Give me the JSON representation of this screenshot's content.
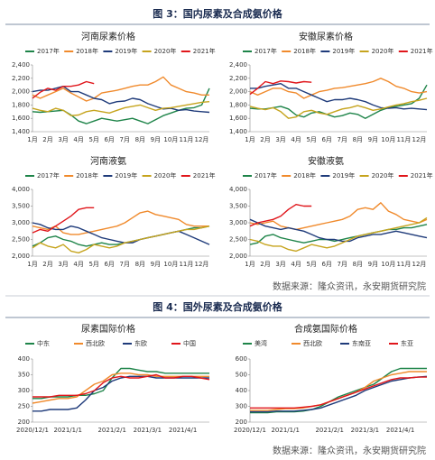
{
  "figures": [
    {
      "title": "图 3：国内尿素及合成氨价格",
      "source": "数据来源：隆众资讯，永安期货研究院"
    },
    {
      "title": "图 4：国外尿素及合成氨价格",
      "source": "数据来源：隆众资讯，永安期货研究院"
    }
  ],
  "chart_data": [
    {
      "type": "line",
      "title": "河南尿素价格",
      "categories": [
        "1月",
        null,
        "2月",
        null,
        "3月",
        null,
        "4月",
        null,
        "5月",
        null,
        "6月",
        null,
        "7月",
        null,
        "8月",
        null,
        "9月",
        null,
        "10月",
        null,
        "11月",
        null,
        "12月",
        null
      ],
      "ylim": [
        1400,
        2400
      ],
      "yticks": [
        {
          "value": 1400,
          "label": "1,400"
        },
        {
          "value": 1600,
          "label": "1,600"
        },
        {
          "value": 1800,
          "label": "1,800"
        },
        {
          "value": 2000,
          "label": "2,000"
        },
        {
          "value": 2200,
          "label": "2,200"
        },
        {
          "value": 2400,
          "label": "2,400"
        }
      ],
      "series": [
        {
          "name": "2017年",
          "color": "#1e8449",
          "values": [
            1700,
            1690,
            1700,
            1710,
            1720,
            1650,
            1560,
            1520,
            1560,
            1600,
            1580,
            1560,
            1580,
            1600,
            1560,
            1520,
            1580,
            1640,
            1680,
            1720,
            1750,
            1760,
            1800,
            2050
          ]
        },
        {
          "name": "2018年",
          "color": "#f08a2c",
          "values": [
            1950,
            1900,
            1950,
            2000,
            2050,
            1980,
            1920,
            1860,
            1900,
            1980,
            2000,
            2020,
            2050,
            2080,
            2100,
            2100,
            2150,
            2220,
            2100,
            2050,
            2000,
            1980,
            1950,
            1950
          ]
        },
        {
          "name": "2019年",
          "color": "#1f3b7a",
          "values": [
            2000,
            2020,
            2020,
            2050,
            2080,
            2000,
            2000,
            1950,
            1900,
            1880,
            1820,
            1850,
            1860,
            1900,
            1880,
            1820,
            1780,
            1740,
            1750,
            1720,
            1730,
            1710,
            1700,
            1690
          ]
        },
        {
          "name": "2020年",
          "color": "#c6a41e",
          "values": [
            1750,
            1720,
            1700,
            1750,
            1720,
            1640,
            1650,
            1700,
            1720,
            1700,
            1680,
            1720,
            1760,
            1780,
            1800,
            1760,
            1720,
            1750,
            1760,
            1780,
            1800,
            1820,
            1840,
            1850
          ]
        },
        {
          "name": "2021年",
          "color": "#e0161b",
          "values": [
            1900,
            1990,
            2050,
            2020,
            2080,
            2080,
            2100,
            2150,
            2120,
            null,
            null,
            null,
            null,
            null,
            null,
            null,
            null,
            null,
            null,
            null,
            null,
            null,
            null,
            null
          ]
        }
      ]
    },
    {
      "type": "line",
      "title": "安徽尿素价格",
      "categories": [
        "1月",
        null,
        "2月",
        null,
        "3月",
        null,
        "4月",
        null,
        "5月",
        null,
        "6月",
        null,
        "7月",
        null,
        "8月",
        null,
        "9月",
        null,
        "10月",
        null,
        "11月",
        null,
        "12月",
        null
      ],
      "ylim": [
        1400,
        2400
      ],
      "yticks": [
        {
          "value": 1400,
          "label": "1,400"
        },
        {
          "value": 1600,
          "label": "1,600"
        },
        {
          "value": 1800,
          "label": "1,800"
        },
        {
          "value": 2000,
          "label": "2,000"
        },
        {
          "value": 2200,
          "label": "2,200"
        },
        {
          "value": 2400,
          "label": "2,400"
        }
      ],
      "series": [
        {
          "name": "2017年",
          "color": "#1e8449",
          "values": [
            1750,
            1740,
            1740,
            1760,
            1780,
            1740,
            1650,
            1620,
            1680,
            1700,
            1660,
            1620,
            1640,
            1680,
            1660,
            1600,
            1660,
            1720,
            1760,
            1780,
            1800,
            1820,
            1900,
            2100
          ]
        },
        {
          "name": "2018年",
          "color": "#f08a2c",
          "values": [
            2000,
            1950,
            2000,
            2050,
            2050,
            2000,
            1980,
            1900,
            1950,
            2000,
            2020,
            2050,
            2060,
            2080,
            2100,
            2120,
            2150,
            2200,
            2150,
            2080,
            2050,
            2000,
            1980,
            2000
          ]
        },
        {
          "name": "2019年",
          "color": "#1f3b7a",
          "values": [
            2050,
            2050,
            2080,
            2100,
            2120,
            2050,
            2050,
            2000,
            1950,
            1900,
            1850,
            1880,
            1880,
            1900,
            1880,
            1850,
            1800,
            1760,
            1750,
            1760,
            1740,
            1750,
            1740,
            1730
          ]
        },
        {
          "name": "2020年",
          "color": "#c6a41e",
          "values": [
            1780,
            1750,
            1730,
            1760,
            1700,
            1600,
            1620,
            1700,
            1720,
            1680,
            1660,
            1700,
            1740,
            1760,
            1790,
            1760,
            1720,
            1740,
            1770,
            1800,
            1820,
            1850,
            1870,
            1900
          ]
        },
        {
          "name": "2021年",
          "color": "#e0161b",
          "values": [
            1960,
            2050,
            2150,
            2120,
            2160,
            2150,
            2130,
            2150,
            2140,
            null,
            null,
            null,
            null,
            null,
            null,
            null,
            null,
            null,
            null,
            null,
            null,
            null,
            null,
            null
          ]
        }
      ]
    },
    {
      "type": "line",
      "title": "河南液氨",
      "categories": [
        "1月",
        null,
        "2月",
        null,
        "3月",
        null,
        "4月",
        null,
        "5月",
        null,
        "6月",
        null,
        "7月",
        null,
        "8月",
        null,
        "9月",
        null,
        "10月",
        null,
        "11月",
        null,
        "12月",
        null
      ],
      "ylim": [
        2000,
        4000
      ],
      "yticks": [
        {
          "value": 2000,
          "label": "2,000"
        },
        {
          "value": 2500,
          "label": "2,500"
        },
        {
          "value": 3000,
          "label": "3,000"
        },
        {
          "value": 3500,
          "label": "3,500"
        },
        {
          "value": 4000,
          "label": "4,000"
        }
      ],
      "series": [
        {
          "name": "2017年",
          "color": "#1e8449",
          "values": [
            2300,
            2400,
            2550,
            2600,
            2500,
            2450,
            2350,
            2300,
            2350,
            2400,
            2350,
            2350,
            2400,
            2450,
            2500,
            2550,
            2600,
            2650,
            2700,
            2750,
            2800,
            2850,
            2850,
            2900
          ]
        },
        {
          "name": "2018年",
          "color": "#f08a2c",
          "values": [
            2900,
            2850,
            2800,
            2900,
            2700,
            2650,
            2650,
            2700,
            2750,
            2800,
            2850,
            2900,
            3000,
            3150,
            3300,
            3350,
            3250,
            3200,
            3150,
            3100,
            2950,
            2900,
            2900,
            2900
          ]
        },
        {
          "name": "2019年",
          "color": "#1f3b7a",
          "values": [
            3000,
            2950,
            2850,
            2800,
            2800,
            2900,
            2850,
            2750,
            2650,
            2550,
            2500,
            2450,
            2400,
            2400,
            2500,
            2550,
            2600,
            2650,
            2700,
            2750,
            2650,
            2550,
            2450,
            2350
          ]
        },
        {
          "name": "2020年",
          "color": "#c6a41e",
          "values": [
            2250,
            2400,
            2300,
            2250,
            2350,
            2150,
            2100,
            2200,
            2350,
            2300,
            2250,
            2300,
            2400,
            2450,
            2500,
            2550,
            2600,
            2650,
            2700,
            2750,
            2800,
            2800,
            2850,
            2900
          ]
        },
        {
          "name": "2021年",
          "color": "#e0161b",
          "values": [
            2700,
            2800,
            2750,
            2900,
            3050,
            3200,
            3400,
            3450,
            3450,
            null,
            null,
            null,
            null,
            null,
            null,
            null,
            null,
            null,
            null,
            null,
            null,
            null,
            null,
            null
          ]
        }
      ]
    },
    {
      "type": "line",
      "title": "安徽液氨",
      "categories": [
        "1月",
        null,
        "2月",
        null,
        "3月",
        null,
        "4月",
        null,
        "5月",
        null,
        "6月",
        null,
        "7月",
        null,
        "8月",
        null,
        "9月",
        null,
        "10月",
        null,
        "11月",
        null,
        "12月",
        null
      ],
      "ylim": [
        2000,
        4000
      ],
      "yticks": [
        {
          "value": 2000,
          "label": "2,000"
        },
        {
          "value": 2500,
          "label": "2,500"
        },
        {
          "value": 3000,
          "label": "3,000"
        },
        {
          "value": 3500,
          "label": "3,500"
        },
        {
          "value": 4000,
          "label": "4,000"
        }
      ],
      "series": [
        {
          "name": "2017年",
          "color": "#1e8449",
          "values": [
            2350,
            2400,
            2600,
            2650,
            2550,
            2500,
            2450,
            2400,
            2450,
            2500,
            2500,
            2450,
            2500,
            2550,
            2600,
            2650,
            2700,
            2750,
            2800,
            2800,
            2850,
            2850,
            2900,
            2950
          ]
        },
        {
          "name": "2018年",
          "color": "#f08a2c",
          "values": [
            3000,
            2950,
            3000,
            3050,
            2900,
            2850,
            2800,
            2850,
            2900,
            2950,
            3000,
            3050,
            3100,
            3200,
            3400,
            3450,
            3400,
            3600,
            3350,
            3250,
            3100,
            3050,
            3000,
            3100
          ]
        },
        {
          "name": "2019年",
          "color": "#1f3b7a",
          "values": [
            3100,
            3000,
            2900,
            2850,
            2800,
            2850,
            2800,
            2750,
            2650,
            2550,
            2500,
            2500,
            2450,
            2450,
            2550,
            2600,
            2650,
            2650,
            2700,
            2750,
            2700,
            2650,
            2600,
            2550
          ]
        },
        {
          "name": "2020年",
          "color": "#c6a41e",
          "values": [
            2500,
            2450,
            2350,
            2300,
            2300,
            2200,
            2150,
            2250,
            2350,
            2300,
            2250,
            2300,
            2400,
            2500,
            2600,
            2650,
            2700,
            2750,
            2800,
            2850,
            2900,
            2950,
            3000,
            3150
          ]
        },
        {
          "name": "2021年",
          "color": "#e0161b",
          "values": [
            2900,
            3000,
            3050,
            3100,
            3200,
            3400,
            3550,
            3500,
            3500,
            null,
            null,
            null,
            null,
            null,
            null,
            null,
            null,
            null,
            null,
            null,
            null,
            null,
            null,
            null
          ]
        }
      ]
    },
    {
      "type": "line",
      "title": "尿素国际价格",
      "categories": [
        "2020/12/1",
        null,
        null,
        null,
        "2021/1/1",
        null,
        null,
        null,
        null,
        "2021/2/1",
        null,
        null,
        null,
        "2021/3/1",
        null,
        null,
        null,
        "2021/4/1",
        null,
        null,
        null
      ],
      "ylim": [
        200,
        400
      ],
      "yticks": [
        200,
        250,
        300,
        350,
        400
      ],
      "series": [
        {
          "name": "中东",
          "color": "#1e8449",
          "values": [
            275,
            275,
            280,
            280,
            280,
            285,
            285,
            290,
            300,
            340,
            370,
            370,
            365,
            360,
            360,
            355,
            355,
            355,
            355,
            355,
            355
          ]
        },
        {
          "name": "西北欧",
          "color": "#f08a2c",
          "values": [
            260,
            265,
            270,
            275,
            275,
            280,
            300,
            320,
            330,
            350,
            355,
            355,
            350,
            350,
            345,
            345,
            345,
            345,
            345,
            345,
            345
          ]
        },
        {
          "name": "东欧",
          "color": "#1f3b7a",
          "values": [
            235,
            235,
            240,
            240,
            240,
            245,
            270,
            300,
            310,
            330,
            340,
            345,
            345,
            345,
            340,
            340,
            340,
            340,
            340,
            340,
            340
          ]
        },
        {
          "name": "中国",
          "color": "#e0161b",
          "values": [
            280,
            280,
            280,
            285,
            285,
            285,
            290,
            300,
            325,
            340,
            345,
            340,
            340,
            345,
            350,
            340,
            340,
            345,
            345,
            340,
            335
          ]
        }
      ]
    },
    {
      "type": "line",
      "title": "合成氨国际价格",
      "categories": [
        "2020/12/1",
        null,
        null,
        null,
        "2021/1/1",
        null,
        null,
        null,
        null,
        "2021/2/1",
        null,
        null,
        null,
        "2021/3/1",
        null,
        null,
        null,
        "2021/4/1",
        null,
        null,
        null
      ],
      "ylim": [
        200,
        600
      ],
      "yticks": [
        200,
        300,
        400,
        500,
        600
      ],
      "series": [
        {
          "name": "美湾",
          "color": "#1e8449",
          "values": [
            260,
            260,
            260,
            265,
            265,
            265,
            270,
            280,
            300,
            330,
            360,
            380,
            400,
            420,
            440,
            480,
            520,
            540,
            540,
            540,
            540
          ]
        },
        {
          "name": "西北欧",
          "color": "#f08a2c",
          "values": [
            275,
            275,
            275,
            280,
            285,
            285,
            290,
            300,
            310,
            330,
            350,
            370,
            390,
            420,
            460,
            480,
            500,
            510,
            520,
            520,
            520
          ]
        },
        {
          "name": "东南亚",
          "color": "#1f3b7a",
          "values": [
            265,
            265,
            265,
            270,
            270,
            270,
            275,
            280,
            290,
            310,
            330,
            350,
            370,
            400,
            420,
            440,
            460,
            470,
            480,
            485,
            490
          ]
        },
        {
          "name": "东亚",
          "color": "#e0161b",
          "values": [
            290,
            290,
            290,
            290,
            290,
            290,
            295,
            300,
            310,
            330,
            350,
            370,
            390,
            410,
            430,
            450,
            470,
            480,
            480,
            485,
            485
          ]
        }
      ]
    }
  ]
}
